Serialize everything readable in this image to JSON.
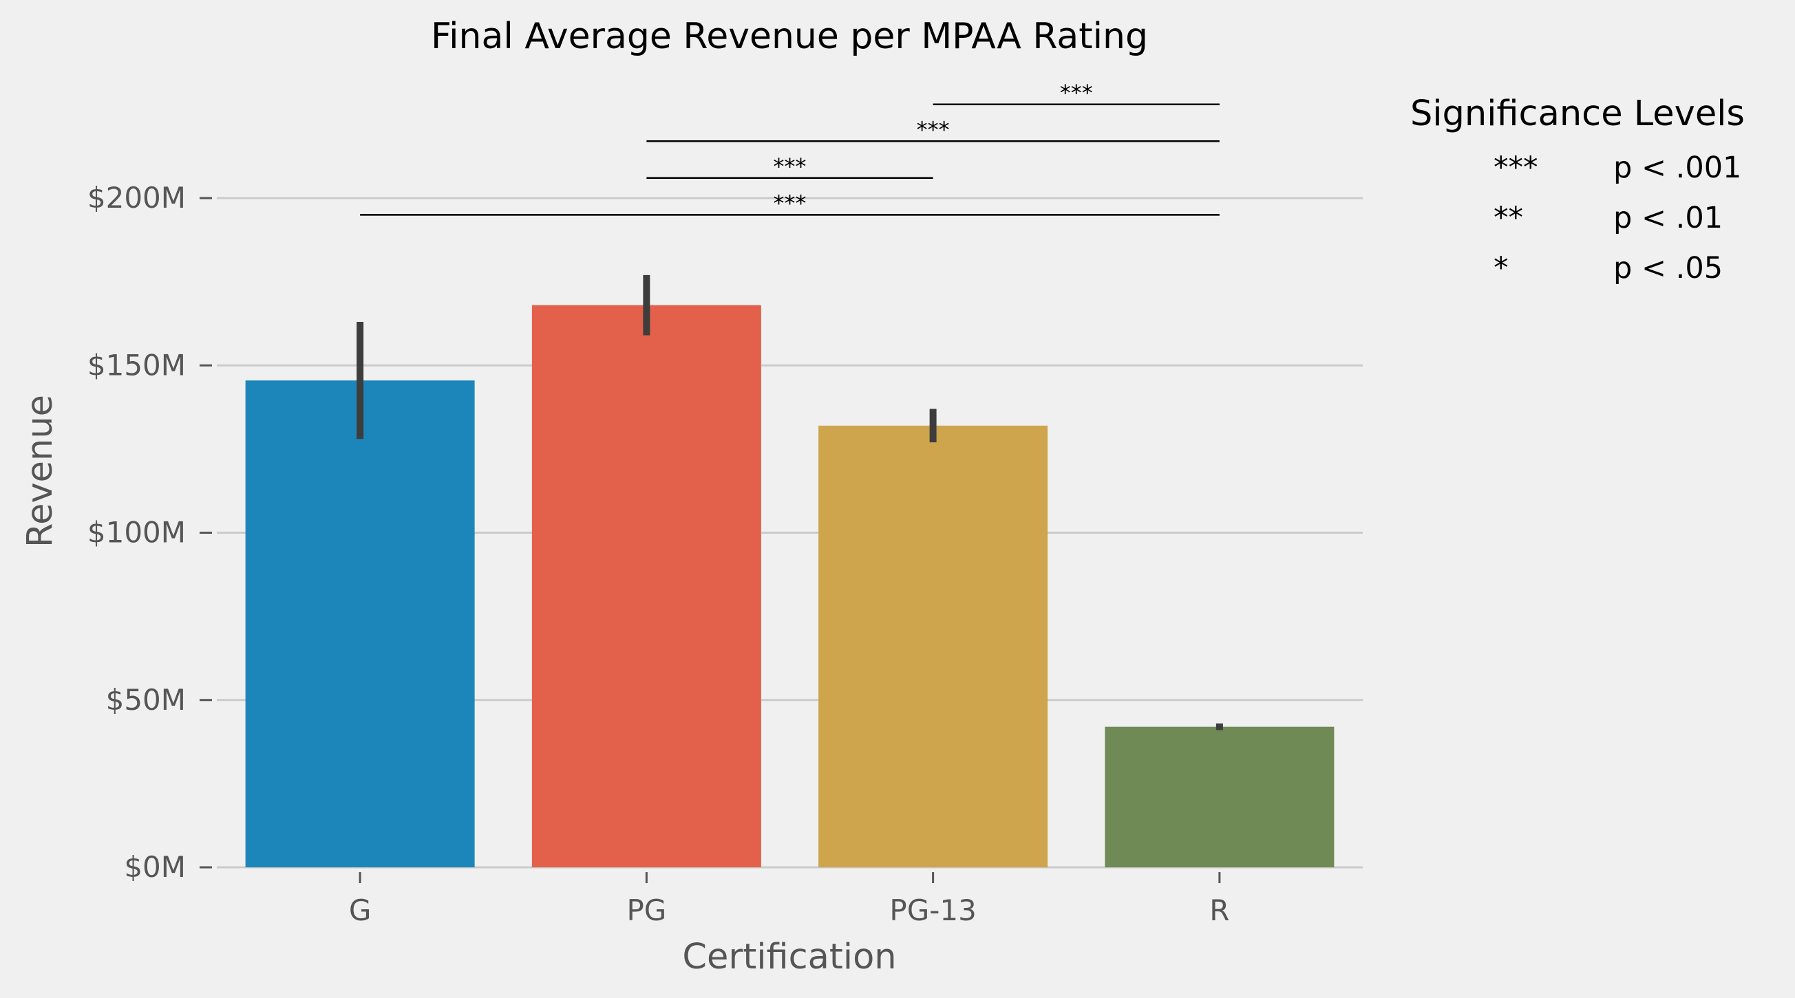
{
  "chart_data": {
    "type": "bar",
    "title": "Final Average Revenue per MPAA Rating",
    "xlabel": "Certification",
    "ylabel": "Revenue",
    "categories": [
      "G",
      "PG",
      "PG-13",
      "R"
    ],
    "values": [
      145.5,
      168,
      132,
      42
    ],
    "error_low": [
      128,
      159,
      127,
      41
    ],
    "error_high": [
      163,
      177,
      137,
      43
    ],
    "colors": [
      "#1c86bb",
      "#e3604a",
      "#cea54d",
      "#6f8a55"
    ],
    "ylim": [
      0,
      230
    ],
    "yticks": [
      0,
      50,
      100,
      150,
      200
    ],
    "ytick_labels": [
      "$0M",
      "$50M",
      "$100M",
      "$150M",
      "$200M"
    ],
    "grid": true,
    "significance": [
      {
        "from": "G",
        "to": "R",
        "label": "***",
        "y": 195
      },
      {
        "from": "PG",
        "to": "PG-13",
        "label": "***",
        "y": 206
      },
      {
        "from": "PG",
        "to": "R",
        "label": "***",
        "y": 217
      },
      {
        "from": "PG-13",
        "to": "R",
        "label": "***",
        "y": 228
      }
    ],
    "legend": {
      "title": "Significance Levels",
      "placement": "right",
      "entries": [
        {
          "symbol": "***",
          "text": "p < .001"
        },
        {
          "symbol": "**",
          "text": "p < .01"
        },
        {
          "symbol": "*",
          "text": "p < .05"
        }
      ]
    }
  }
}
